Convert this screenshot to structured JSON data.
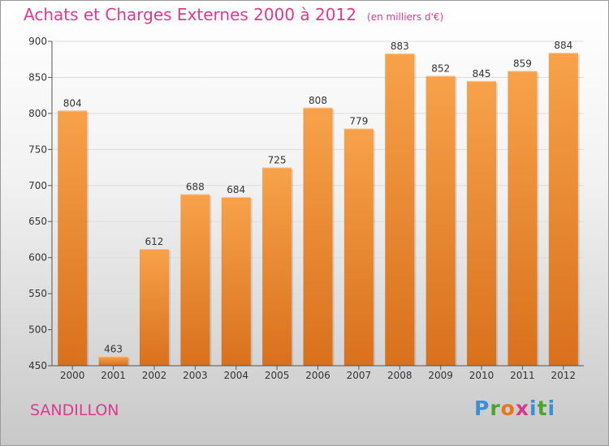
{
  "header": {
    "title": "Achats et Charges Externes 2000 à 2012",
    "subtitle": "(en milliers d'€)"
  },
  "footer": {
    "town": "SANDILLON",
    "logo": [
      "P",
      "r",
      "o",
      "x",
      "i",
      "t",
      "i"
    ]
  },
  "chart_data": {
    "type": "bar",
    "title": "Achats et Charges Externes 2000 à 2012",
    "subtitle": "(en milliers d'€)",
    "categories": [
      "2000",
      "2001",
      "2002",
      "2003",
      "2004",
      "2005",
      "2006",
      "2007",
      "2008",
      "2009",
      "2010",
      "2011",
      "2012"
    ],
    "values": [
      804,
      463,
      612,
      688,
      684,
      725,
      808,
      779,
      883,
      852,
      845,
      859,
      884
    ],
    "ylim": [
      450,
      900
    ],
    "yticks": [
      450,
      500,
      550,
      600,
      650,
      700,
      750,
      800,
      850,
      900
    ],
    "grid": true,
    "colors": {
      "bar_light": "#f7a24a",
      "bar_dark": "#d9701c",
      "grid": "#dcdcdc",
      "axis": "#555555"
    }
  }
}
